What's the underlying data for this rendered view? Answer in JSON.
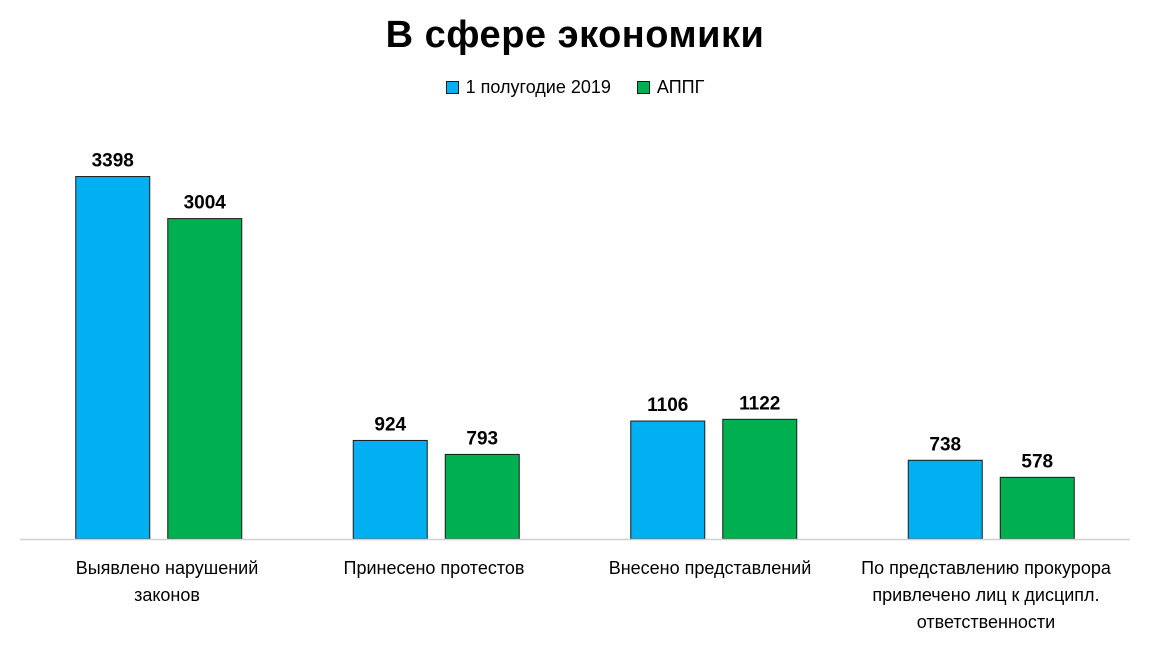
{
  "chart_data": {
    "type": "bar",
    "title": "В сфере экономики",
    "categories": [
      "Выявлено нарушений законов",
      "Принесено протестов",
      "Внесено представлений",
      "По представлению прокурора привлечено лиц к дисципл. ответственности"
    ],
    "category_display": [
      "Выявлено нарушений\nзаконов",
      "Принесено протестов",
      "Внесено представлений",
      "По представлению прокурора\nпривлечено лиц к дисципл.\nответственности"
    ],
    "series": [
      {
        "name": "1 полугодие 2019",
        "values": [
          3398,
          924,
          1106,
          738
        ],
        "color": "#00B0F0"
      },
      {
        "name": "АППГ",
        "values": [
          3004,
          793,
          1122,
          578
        ],
        "color": "#00B050"
      }
    ],
    "ylim": [
      0,
      3600
    ],
    "legend_position": "top",
    "grid": false,
    "data_labels": true
  }
}
